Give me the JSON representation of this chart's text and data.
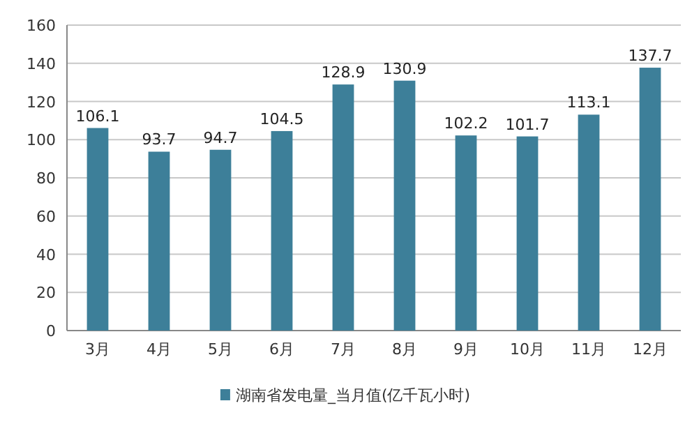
{
  "chart_data": {
    "type": "bar",
    "categories": [
      "3月",
      "4月",
      "5月",
      "6月",
      "7月",
      "8月",
      "9月",
      "10月",
      "11月",
      "12月"
    ],
    "series": [
      {
        "name": "湖南省发电量_当月值(亿千瓦小时)",
        "color": "#3d7f99",
        "values": [
          106.1,
          93.7,
          94.7,
          104.5,
          128.9,
          130.9,
          102.2,
          101.7,
          113.1,
          137.7
        ]
      }
    ],
    "ylim": [
      0,
      160
    ],
    "yticks": [
      0,
      20,
      40,
      60,
      80,
      100,
      120,
      140,
      160
    ],
    "grid": "y",
    "legend": "bottom",
    "data_labels": true
  }
}
